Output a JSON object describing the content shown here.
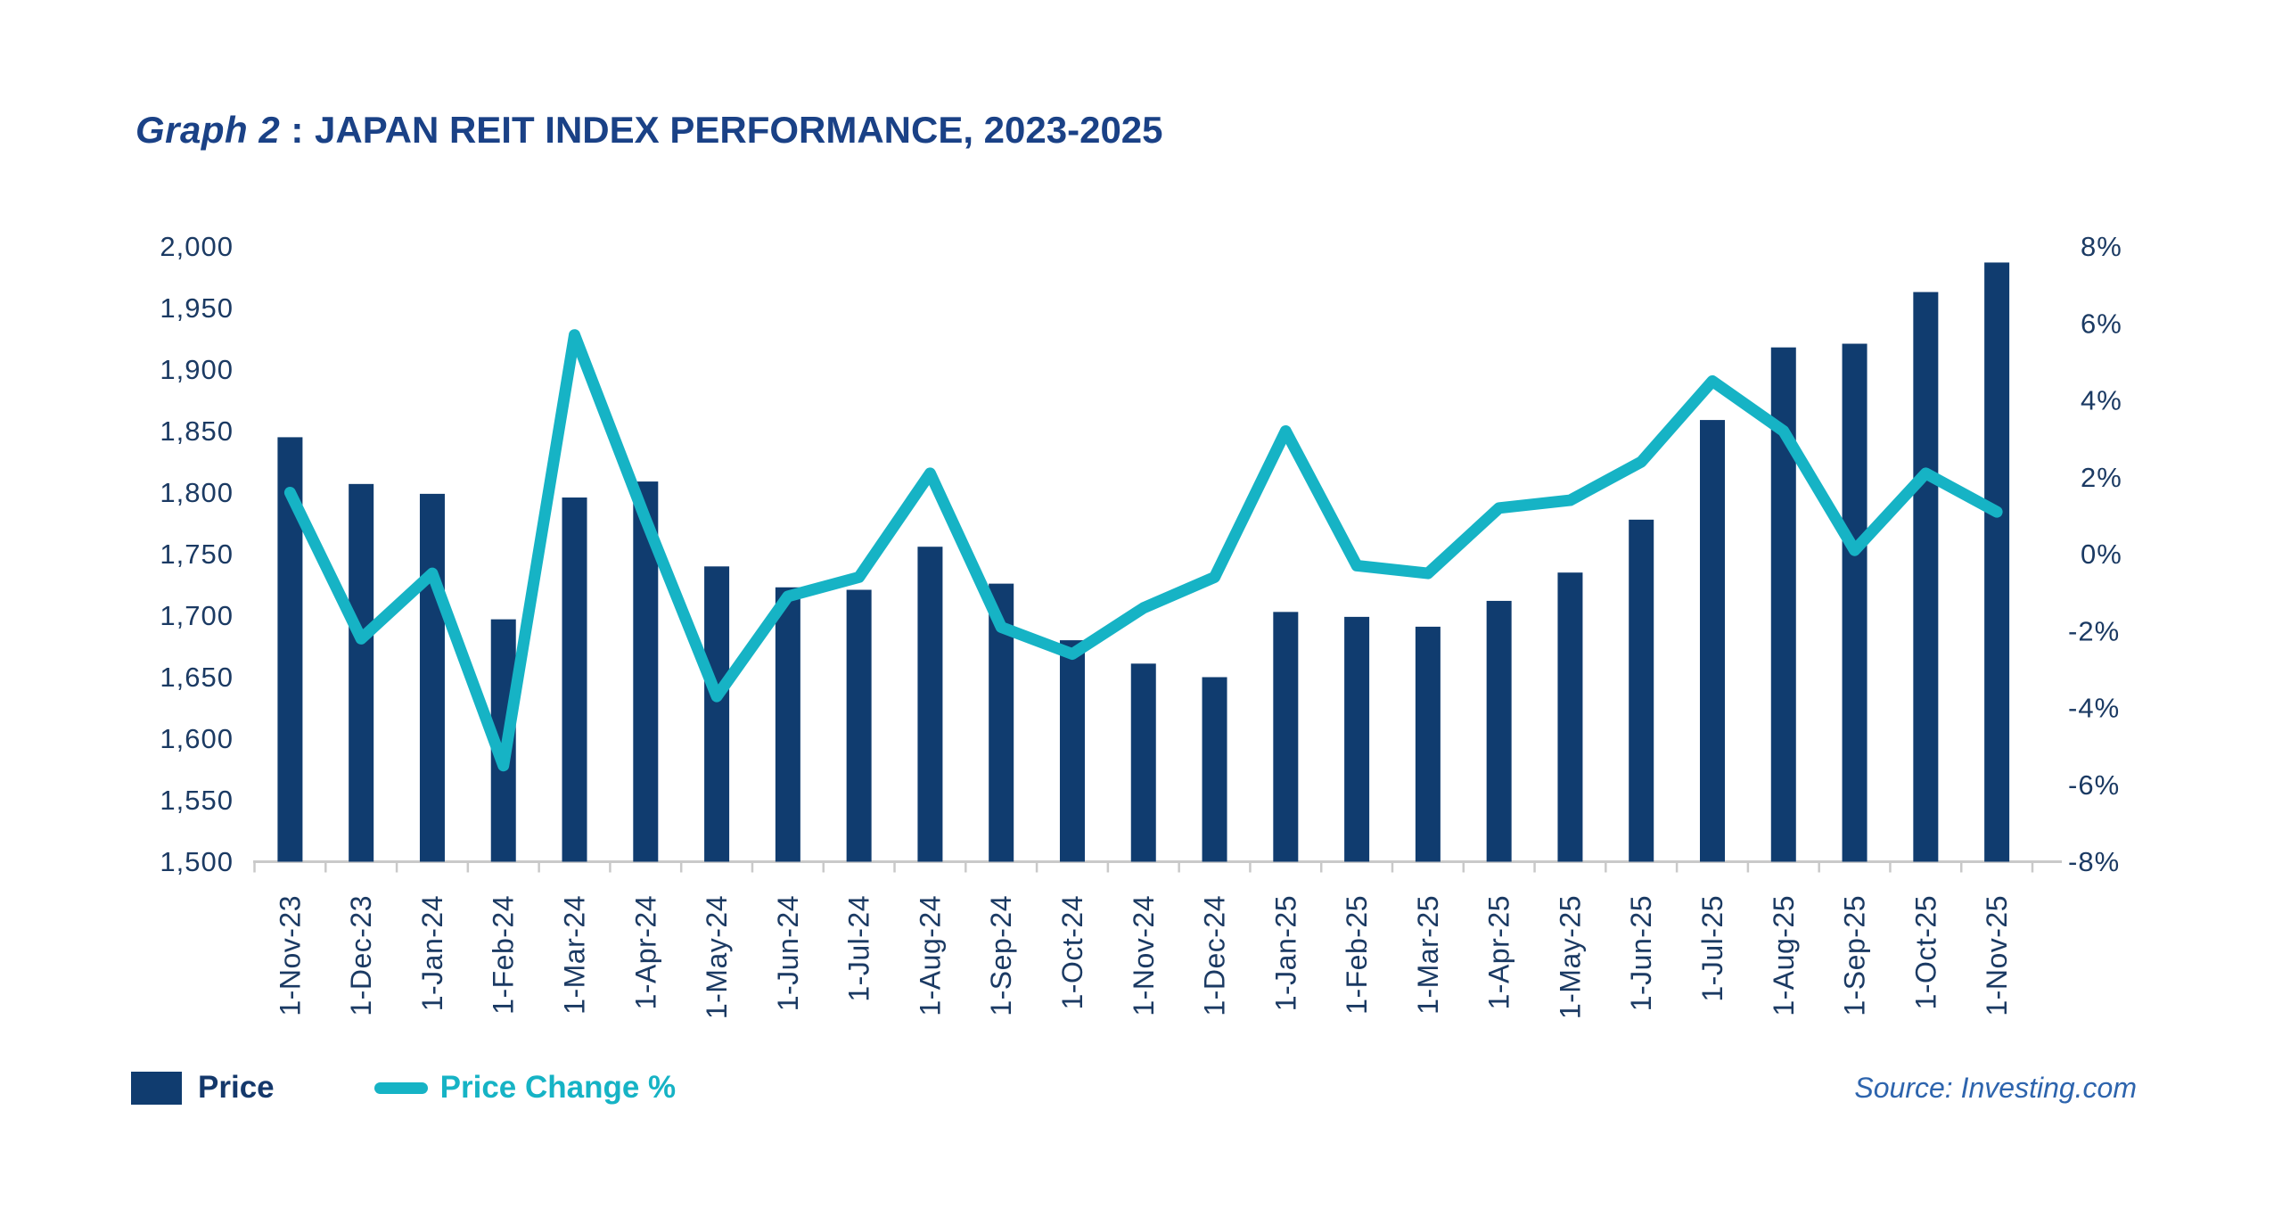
{
  "title": {
    "prefix": "Graph 2",
    "separator": " : ",
    "text": "JAPAN REIT INDEX PERFORMANCE, 2023-2025"
  },
  "source": "Source: Investing.com",
  "colors": {
    "bar": "#103c6f",
    "line": "#16b3c5",
    "title_text": "#1a4186",
    "axis_text": "#1b3a63",
    "axis_line": "#c9c9c9",
    "source_text": "#2d64ad"
  },
  "chart_data": {
    "type": "bar",
    "subtype": "combo-bar-line",
    "title": "Graph 2 : JAPAN REIT INDEX PERFORMANCE, 2023-2025",
    "categories": [
      "1-Nov-23",
      "1-Dec-23",
      "1-Jan-24",
      "1-Feb-24",
      "1-Mar-24",
      "1-Apr-24",
      "1-May-24",
      "1-Jun-24",
      "1-Jul-24",
      "1-Aug-24",
      "1-Sep-24",
      "1-Oct-24",
      "1-Nov-24",
      "1-Dec-24",
      "1-Jan-25",
      "1-Feb-25",
      "1-Mar-25",
      "1-Apr-25",
      "1-May-25",
      "1-Jun-25",
      "1-Jul-25",
      "1-Aug-25",
      "1-Sep-25",
      "1-Oct-25",
      "1-Nov-25"
    ],
    "series": [
      {
        "name": "Price",
        "type": "bar",
        "axis": "left",
        "values": [
          1845,
          1807,
          1799,
          1697,
          1796,
          1809,
          1740,
          1723,
          1721,
          1756,
          1726,
          1680,
          1661,
          1650,
          1703,
          1699,
          1691,
          1712,
          1735,
          1778,
          1859,
          1918,
          1921,
          1963,
          1987
        ]
      },
      {
        "name": "Price Change %",
        "type": "line",
        "axis": "right",
        "values": [
          1.6,
          -2.2,
          -0.5,
          -5.5,
          5.7,
          0.9,
          -3.7,
          -1.1,
          -0.6,
          2.1,
          -1.9,
          -2.6,
          -1.4,
          -0.6,
          3.2,
          -0.3,
          -0.5,
          1.2,
          1.4,
          2.4,
          4.5,
          3.2,
          0.1,
          2.1,
          1.1
        ]
      }
    ],
    "left_axis": {
      "min": 1500,
      "max": 2000,
      "step": 50,
      "tick_labels": [
        "2,000",
        "1,950",
        "1,900",
        "1,850",
        "1,800",
        "1,750",
        "1,700",
        "1,650",
        "1,600",
        "1,550",
        "1,500"
      ]
    },
    "right_axis": {
      "min": -8,
      "max": 8,
      "step": 2,
      "tick_labels": [
        "8%",
        "6%",
        "4%",
        "2%",
        "0%",
        "-2%",
        "-4%",
        "-6%",
        "-8%"
      ]
    },
    "grid": false,
    "legend_position": "bottom-left"
  }
}
